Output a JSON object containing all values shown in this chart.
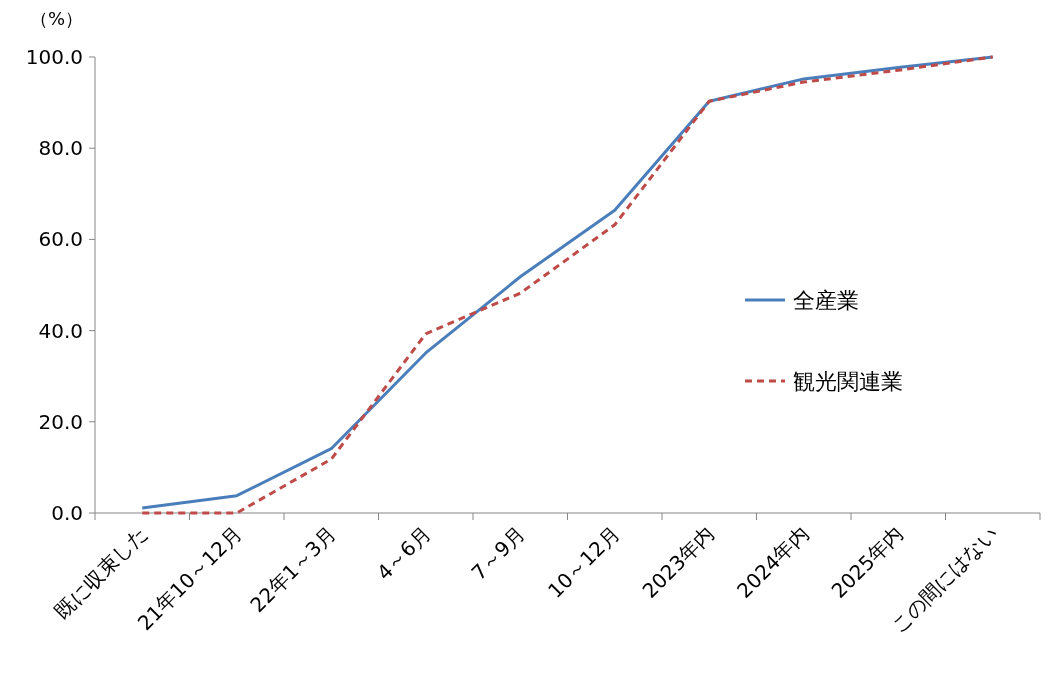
{
  "chart_data": {
    "type": "line",
    "ylabel": "（%）",
    "categories": [
      "既に収束した",
      "21年10～12月",
      "22年1～3月",
      "4～6月",
      "7～9月",
      "10～12月",
      "2023年内",
      "2024年内",
      "2025年内",
      "この間にはない"
    ],
    "series": [
      {
        "name": "全産業",
        "color": "#4a7ebb",
        "line_style": "solid",
        "values": [
          1.1,
          3.8,
          14.1,
          35.1,
          51.8,
          66.4,
          90.3,
          95.2,
          97.7,
          100.0
        ]
      },
      {
        "name": "観光関連業",
        "color": "#be4b48",
        "line_style": "dashed",
        "values": [
          0.0,
          0.0,
          11.8,
          39.3,
          48.2,
          63.2,
          90.3,
          94.5,
          97.1,
          100.0
        ]
      }
    ],
    "ylim": [
      0,
      100
    ],
    "yticks": [
      {
        "value": 0,
        "label": "0.0"
      },
      {
        "value": 20,
        "label": "20.0"
      },
      {
        "value": 40,
        "label": "40.0"
      },
      {
        "value": 60,
        "label": "60.0"
      },
      {
        "value": 80,
        "label": "80.0"
      },
      {
        "value": 100,
        "label": "100.0"
      }
    ],
    "grid": false,
    "marker": "none",
    "legend": "right"
  }
}
